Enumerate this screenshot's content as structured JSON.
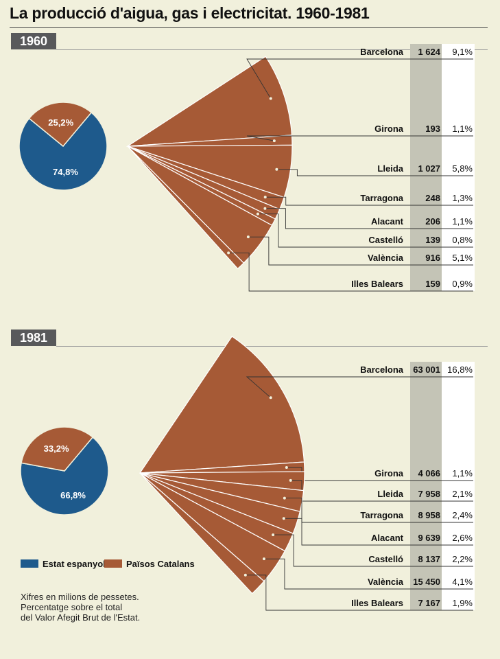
{
  "title": "La producció d'aigua, gas i electricitat. 1960-1981",
  "legend": {
    "spain": {
      "label": "Estat espanyol",
      "color": "#1e5a8c"
    },
    "catalan": {
      "label": "Països Catalans",
      "color": "#a65a36"
    }
  },
  "note": [
    "Xifres en milions de pessetes.",
    "Percentatge sobre el total",
    "del Valor Afegit Brut de l'Estat."
  ],
  "chart_data": [
    {
      "type": "pie",
      "year": "1960",
      "pie": [
        {
          "label": "74,8%",
          "value": 74.8,
          "color": "#1e5a8c"
        },
        {
          "label": "25,2%",
          "value": 25.2,
          "color": "#a65a36"
        }
      ],
      "fan": {
        "type": "table",
        "columns": [
          "region",
          "value",
          "percent"
        ],
        "rows": [
          {
            "region": "Barcelona",
            "value": "1 624",
            "percent": "9,1%"
          },
          {
            "region": "Girona",
            "value": "193",
            "percent": "1,1%"
          },
          {
            "region": "Lleida",
            "value": "1 027",
            "percent": "5,8%"
          },
          {
            "region": "Tarragona",
            "value": "248",
            "percent": "1,3%"
          },
          {
            "region": "Alacant",
            "value": "206",
            "percent": "1,1%"
          },
          {
            "region": "Castelló",
            "value": "139",
            "percent": "0,8%"
          },
          {
            "region": "València",
            "value": "916",
            "percent": "5,1%"
          },
          {
            "region": "Illes Balears",
            "value": "159",
            "percent": "0,9%"
          }
        ]
      }
    },
    {
      "type": "pie",
      "year": "1981",
      "pie": [
        {
          "label": "66,8%",
          "value": 66.8,
          "color": "#1e5a8c"
        },
        {
          "label": "33,2%",
          "value": 33.2,
          "color": "#a65a36"
        }
      ],
      "fan": {
        "type": "table",
        "columns": [
          "region",
          "value",
          "percent"
        ],
        "rows": [
          {
            "region": "Barcelona",
            "value": "63 001",
            "percent": "16,8%"
          },
          {
            "region": "Girona",
            "value": "4 066",
            "percent": "1,1%"
          },
          {
            "region": "Lleida",
            "value": "7 958",
            "percent": "2,1%"
          },
          {
            "region": "Tarragona",
            "value": "8 958",
            "percent": "2,4%"
          },
          {
            "region": "Alacant",
            "value": "9 639",
            "percent": "2,6%"
          },
          {
            "region": "Castelló",
            "value": "8 137",
            "percent": "2,2%"
          },
          {
            "region": "València",
            "value": "15 450",
            "percent": "4,1%"
          },
          {
            "region": "Illes Balears",
            "value": "7 167",
            "percent": "1,9%"
          }
        ]
      }
    }
  ]
}
